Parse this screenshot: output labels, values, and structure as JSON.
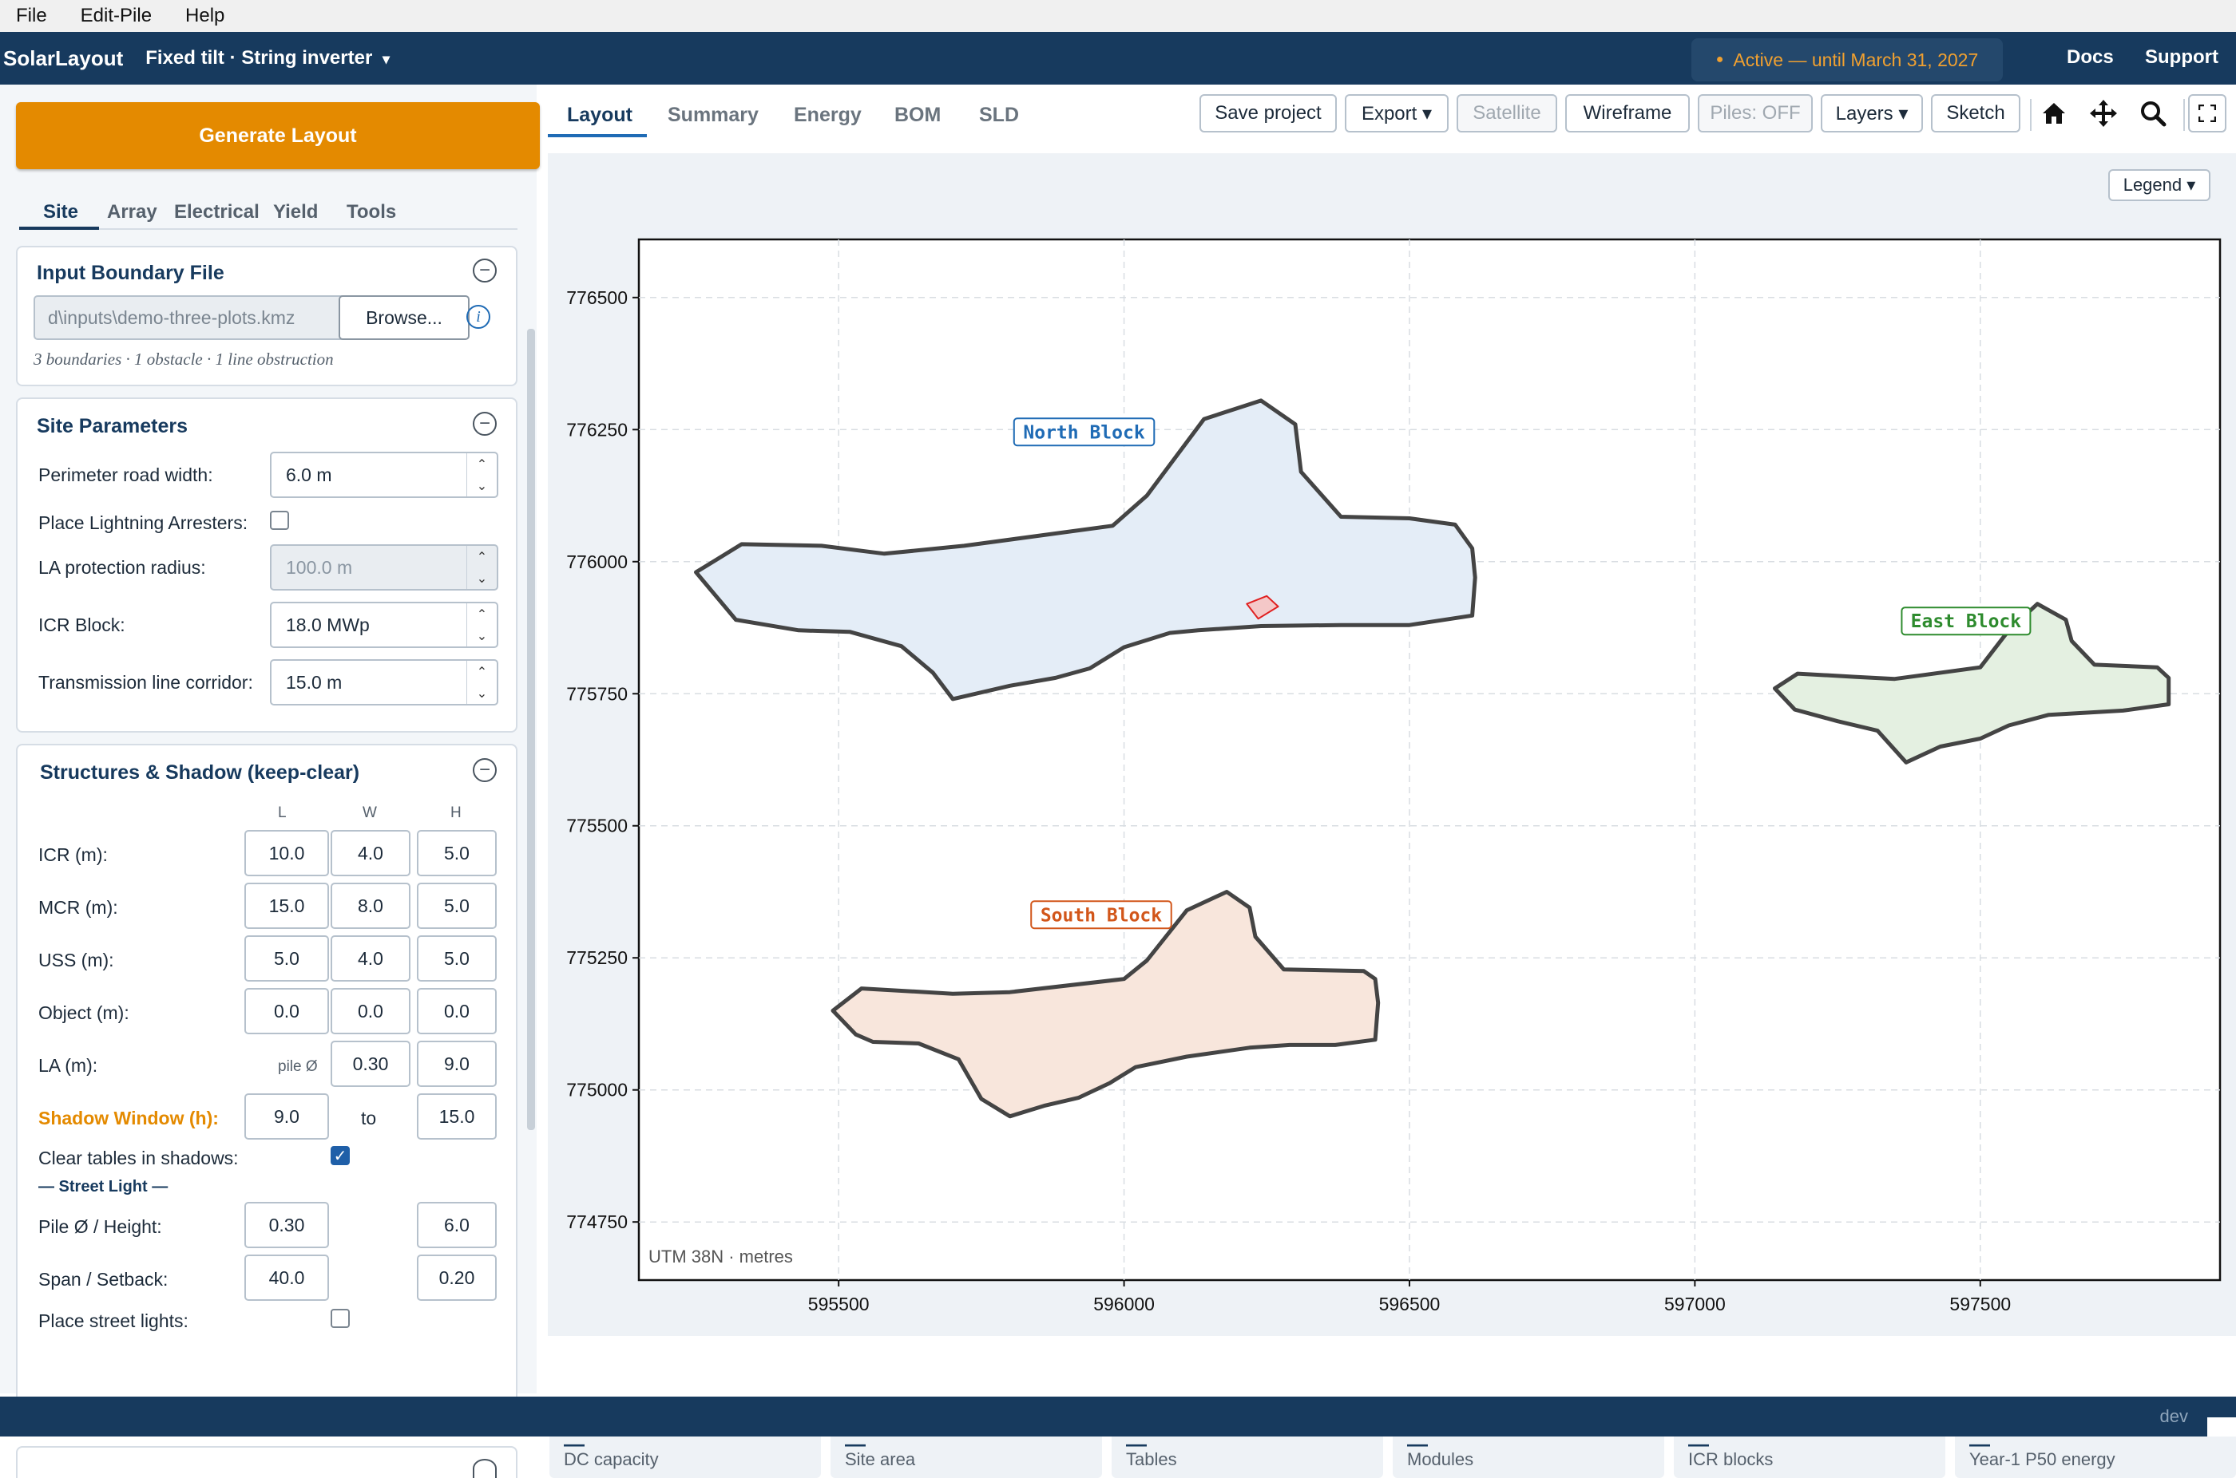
{
  "menu": [
    "File",
    "Edit-Pile",
    "Help"
  ],
  "header": {
    "brand": "SolarLayout",
    "mode": "Fixed tilt · String inverter",
    "mode_caret": "▾",
    "license": "Active — until March 31, 2027",
    "docs": "Docs",
    "support": "Support"
  },
  "sidebar": {
    "generate_button": "Generate Layout",
    "tabs": [
      "Site",
      "Array",
      "Electrical",
      "Yield",
      "Tools"
    ],
    "input_boundary": {
      "title": "Input Boundary File",
      "path": "d\\inputs\\demo-three-plots.kmz",
      "browse": "Browse...",
      "summary": "3 boundaries · 1 obstacle · 1 line obstruction"
    },
    "site_parameters": {
      "title": "Site Parameters",
      "perimeter_road_label": "Perimeter road width:",
      "perimeter_road_value": "6.0  m",
      "lightning_label": "Place Lightning Arresters:",
      "la_radius_label": "LA protection radius:",
      "la_radius_value": "100.0  m",
      "icr_block_label": "ICR Block:",
      "icr_block_value": "18.0  MWp",
      "tx_corridor_label": "Transmission line corridor:",
      "tx_corridor_value": "15.0  m"
    },
    "structures": {
      "title": "Structures & Shadow (keep-clear)",
      "col_l": "L",
      "col_w": "W",
      "col_h": "H",
      "rows": [
        {
          "label": "ICR (m):",
          "l": "10.0",
          "w": "4.0",
          "h": "5.0"
        },
        {
          "label": "MCR (m):",
          "l": "15.0",
          "w": "8.0",
          "h": "5.0"
        },
        {
          "label": "USS (m):",
          "l": "5.0",
          "w": "4.0",
          "h": "5.0"
        },
        {
          "label": "Object (m):",
          "l": "0.0",
          "w": "0.0",
          "h": "0.0"
        }
      ],
      "la_label": "LA (m):",
      "la_pile": "pile Ø",
      "la_w": "0.30",
      "la_h": "9.0",
      "shadow_label": "Shadow Window (h):",
      "shadow_from": "9.0",
      "shadow_to_word": "to",
      "shadow_to": "15.0",
      "clear_tables_label": "Clear tables in shadows:",
      "street_light_header": "— Street Light —",
      "pile_height_label": "Pile Ø / Height:",
      "pile_value": "0.30",
      "height_value": "6.0",
      "span_setback_label": "Span / Setback:",
      "span_value": "40.0",
      "setback_value": "0.20",
      "place_street_lights_label": "Place street lights:"
    }
  },
  "main": {
    "tabs": [
      "Layout",
      "Summary",
      "Energy",
      "BOM",
      "SLD"
    ],
    "toolbar": {
      "save": "Save project",
      "export": "Export ▾",
      "satellite": "Satellite",
      "wireframe": "Wireframe",
      "piles": "Piles: OFF",
      "layers": "Layers ▾",
      "sketch": "Sketch"
    },
    "legend_button": "Legend ▾",
    "crs_note": "UTM 38N · metres",
    "cards": [
      {
        "value": "—",
        "label": "DC capacity"
      },
      {
        "value": "—",
        "label": "Site area"
      },
      {
        "value": "—",
        "label": "Tables"
      },
      {
        "value": "—",
        "label": "Modules"
      },
      {
        "value": "—",
        "label": "ICR blocks"
      },
      {
        "value": "—",
        "label": "Year-1 P50 energy"
      }
    ]
  },
  "statusbar": {
    "env": "dev"
  },
  "colors": {
    "navy": "#173a5e",
    "orange": "#e48a00",
    "north": "#1f6bb5",
    "south": "#d2561a",
    "east": "#2e8b2e"
  },
  "chart_data": {
    "type": "map",
    "xlim": [
      595150,
      597920
    ],
    "ylim": [
      774640,
      776610
    ],
    "x_ticks": [
      595500,
      596000,
      596500,
      597000,
      597500
    ],
    "y_ticks": [
      774750,
      775000,
      775250,
      775500,
      775750,
      776000,
      776250,
      776500
    ],
    "grid": true,
    "polygons": [
      {
        "name": "North Block",
        "color": "#1f6bb5",
        "fill": "#e4edf7",
        "label_at": [
          595930,
          776244
        ],
        "points": [
          [
            595250,
            775980
          ],
          [
            595330,
            776033
          ],
          [
            595470,
            776030
          ],
          [
            595580,
            776015
          ],
          [
            595720,
            776030
          ],
          [
            595980,
            776068
          ],
          [
            596040,
            776125
          ],
          [
            596140,
            776270
          ],
          [
            596240,
            776305
          ],
          [
            596300,
            776260
          ],
          [
            596310,
            776170
          ],
          [
            596380,
            776085
          ],
          [
            596500,
            776082
          ],
          [
            596580,
            776070
          ],
          [
            596610,
            776025
          ],
          [
            596615,
            775970
          ],
          [
            596610,
            775898
          ],
          [
            596500,
            775880
          ],
          [
            596380,
            775880
          ],
          [
            596240,
            775878
          ],
          [
            596130,
            775870
          ],
          [
            596080,
            775865
          ],
          [
            596000,
            775838
          ],
          [
            595940,
            775798
          ],
          [
            595880,
            775780
          ],
          [
            595800,
            775765
          ],
          [
            595700,
            775740
          ],
          [
            595665,
            775790
          ],
          [
            595610,
            775840
          ],
          [
            595520,
            775867
          ],
          [
            595430,
            775870
          ],
          [
            595320,
            775890
          ]
        ]
      },
      {
        "name": "East Block",
        "color": "#2e8b2e",
        "fill": "#e4f0e1",
        "label_at": [
          597475,
          775886
        ],
        "points": [
          [
            597140,
            775760
          ],
          [
            597180,
            775788
          ],
          [
            597280,
            775782
          ],
          [
            597350,
            775778
          ],
          [
            597500,
            775800
          ],
          [
            597550,
            775870
          ],
          [
            597600,
            775920
          ],
          [
            597650,
            775890
          ],
          [
            597660,
            775850
          ],
          [
            597700,
            775805
          ],
          [
            597810,
            775800
          ],
          [
            597830,
            775780
          ],
          [
            597830,
            775730
          ],
          [
            597750,
            775718
          ],
          [
            597620,
            775710
          ],
          [
            597550,
            775690
          ],
          [
            597500,
            775665
          ],
          [
            597430,
            775650
          ],
          [
            597370,
            775620
          ],
          [
            597320,
            775680
          ],
          [
            597250,
            775698
          ],
          [
            597175,
            775720
          ]
        ]
      },
      {
        "name": "South Block",
        "color": "#d2561a",
        "fill": "#f8e6dc",
        "label_at": [
          595960,
          775330
        ],
        "points": [
          [
            595490,
            775150
          ],
          [
            595540,
            775192
          ],
          [
            595700,
            775182
          ],
          [
            595800,
            775185
          ],
          [
            596000,
            775210
          ],
          [
            596040,
            775245
          ],
          [
            596110,
            775340
          ],
          [
            596180,
            775375
          ],
          [
            596220,
            775345
          ],
          [
            596230,
            775290
          ],
          [
            596280,
            775228
          ],
          [
            596420,
            775225
          ],
          [
            596440,
            775210
          ],
          [
            596445,
            775165
          ],
          [
            596440,
            775095
          ],
          [
            596370,
            775085
          ],
          [
            596290,
            775085
          ],
          [
            596220,
            775080
          ],
          [
            596110,
            775063
          ],
          [
            596020,
            775043
          ],
          [
            595975,
            775013
          ],
          [
            595920,
            774985
          ],
          [
            595860,
            774970
          ],
          [
            595800,
            774950
          ],
          [
            595750,
            774983
          ],
          [
            595710,
            775058
          ],
          [
            595640,
            775088
          ],
          [
            595560,
            775091
          ],
          [
            595530,
            775105
          ]
        ]
      },
      {
        "name": "",
        "color": "#e02020",
        "fill": "#f4c8c8",
        "points": [
          [
            596215,
            775920
          ],
          [
            596250,
            775935
          ],
          [
            596270,
            775915
          ],
          [
            596235,
            775892
          ]
        ]
      }
    ]
  }
}
